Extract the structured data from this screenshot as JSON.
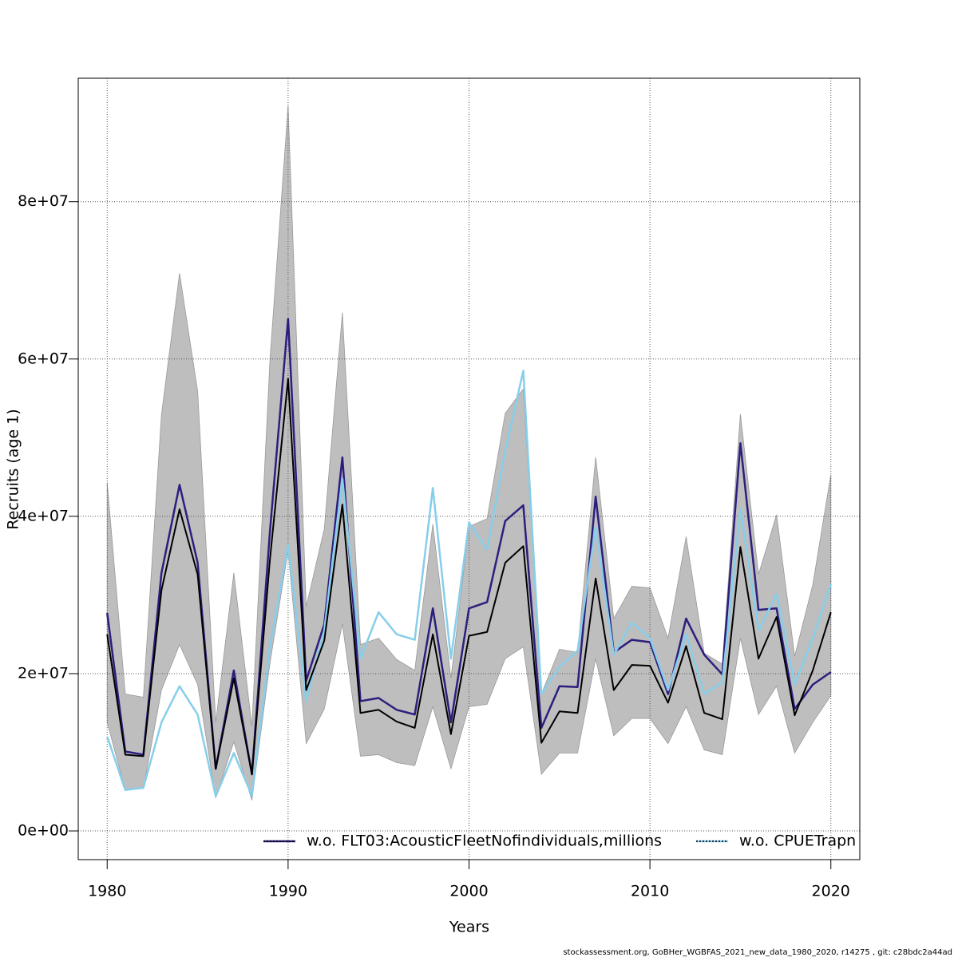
{
  "chart_data": {
    "type": "line",
    "xlabel": "Years",
    "ylabel": "Recruits (age 1)",
    "footer": "stockassessment.org, GoBHer_WGBFAS_2021_new_data_1980_2020, r14275 , git: c28bdc2a44ad",
    "x": [
      1980,
      1981,
      1982,
      1983,
      1984,
      1985,
      1986,
      1987,
      1988,
      1989,
      1990,
      1991,
      1992,
      1993,
      1994,
      1995,
      1996,
      1997,
      1998,
      1999,
      2000,
      2001,
      2002,
      2003,
      2004,
      2005,
      2006,
      2007,
      2008,
      2009,
      2010,
      2011,
      2012,
      2013,
      2014,
      2015,
      2016,
      2017,
      2018,
      2019,
      2020
    ],
    "estimate": {
      "color": "#000000",
      "values": [
        25000000.0,
        9700000.0,
        9500000.0,
        30600000.0,
        40900000.0,
        32600000.0,
        7900000.0,
        19400000.0,
        7200000.0,
        34600000.0,
        57500000.0,
        17900000.0,
        24200000.0,
        41500000.0,
        15000000.0,
        15400000.0,
        13900000.0,
        13100000.0,
        25000000.0,
        12300000.0,
        24800000.0,
        25300000.0,
        34100000.0,
        36200000.0,
        11200000.0,
        15200000.0,
        15000000.0,
        32100000.0,
        17900000.0,
        21100000.0,
        21000000.0,
        16300000.0,
        23500000.0,
        15000000.0,
        14200000.0,
        36100000.0,
        21900000.0,
        27200000.0,
        14700000.0,
        20400000.0,
        27800000.0
      ]
    },
    "band": {
      "color": "#bebebe",
      "upper": [
        44300000.0,
        17400000.0,
        17000000.0,
        52900000.0,
        70900000.0,
        55900000.0,
        13800000.0,
        32800000.0,
        13300000.0,
        60000000.0,
        92200000.0,
        28500000.0,
        38400000.0,
        65900000.0,
        23700000.0,
        24500000.0,
        21800000.0,
        20400000.0,
        39000000.0,
        19400000.0,
        38700000.0,
        39700000.0,
        53100000.0,
        56200000.0,
        17400000.0,
        23100000.0,
        22700000.0,
        47500000.0,
        27000000.0,
        31100000.0,
        30900000.0,
        24500000.0,
        37400000.0,
        22600000.0,
        21200000.0,
        53000000.0,
        32600000.0,
        40200000.0,
        22200000.0,
        31300000.0,
        45300000.0
      ],
      "lower": [
        13800000.0,
        5200000.0,
        5400000.0,
        17900000.0,
        23700000.0,
        18600000.0,
        4200000.0,
        11300000.0,
        3900000.0,
        21400000.0,
        35600000.0,
        11100000.0,
        15500000.0,
        26300000.0,
        9500000.0,
        9700000.0,
        8700000.0,
        8300000.0,
        15800000.0,
        7900000.0,
        15800000.0,
        16100000.0,
        21900000.0,
        23400000.0,
        7200000.0,
        9900000.0,
        9900000.0,
        21900000.0,
        12100000.0,
        14300000.0,
        14300000.0,
        11100000.0,
        15800000.0,
        10300000.0,
        9700000.0,
        24500000.0,
        14800000.0,
        18400000.0,
        9900000.0,
        13800000.0,
        17200000.0
      ]
    },
    "series": [
      {
        "name": "w.o. FLT03:AcousticFleetNofindividuals,millions",
        "color": "#2d1e7e",
        "values": [
          27700000.0,
          10100000.0,
          9700000.0,
          32800000.0,
          44000000.0,
          34100000.0,
          7900000.0,
          20400000.0,
          7200000.0,
          38200000.0,
          65100000.0,
          19100000.0,
          26300000.0,
          47500000.0,
          16500000.0,
          16900000.0,
          15400000.0,
          14800000.0,
          28300000.0,
          13800000.0,
          28300000.0,
          29100000.0,
          39400000.0,
          41400000.0,
          13100000.0,
          18400000.0,
          18300000.0,
          42500000.0,
          22700000.0,
          24300000.0,
          24000000.0,
          17400000.0,
          27000000.0,
          22400000.0,
          19900000.0,
          49300000.0,
          28100000.0,
          28300000.0,
          15500000.0,
          18600000.0,
          20200000.0
        ]
      },
      {
        "name": "w.o. CPUETrapn",
        "color": "#87ceeb",
        "values": [
          12000000.0,
          5200000.0,
          5500000.0,
          13800000.0,
          18400000.0,
          14800000.0,
          4400000.0,
          9900000.0,
          4500000.0,
          23500000.0,
          36300000.0,
          16500000.0,
          25500000.0,
          44800000.0,
          21900000.0,
          27800000.0,
          25000000.0,
          24300000.0,
          43600000.0,
          21900000.0,
          39200000.0,
          35800000.0,
          48300000.0,
          58500000.0,
          17400000.0,
          20900000.0,
          22900000.0,
          38700000.0,
          22400000.0,
          26500000.0,
          24500000.0,
          17900000.0,
          25000000.0,
          17400000.0,
          18900000.0,
          41000000.0,
          25500000.0,
          30100000.0,
          18600000.0,
          24500000.0,
          31400000.0
        ]
      }
    ],
    "xlim": [
      1978.4,
      2021.6
    ],
    "xticks": [
      1980,
      1990,
      2000,
      2010,
      2020
    ],
    "ylim": [
      -3650000,
      95700000
    ],
    "yticks": [
      {
        "value": 0,
        "label": "0e+00"
      },
      {
        "value": 20000000,
        "label": "2e+07"
      },
      {
        "value": 40000000,
        "label": "4e+07"
      },
      {
        "value": 60000000,
        "label": "6e+07"
      },
      {
        "value": 80000000,
        "label": "8e+07"
      }
    ],
    "grid": true,
    "legend": "bottom"
  }
}
